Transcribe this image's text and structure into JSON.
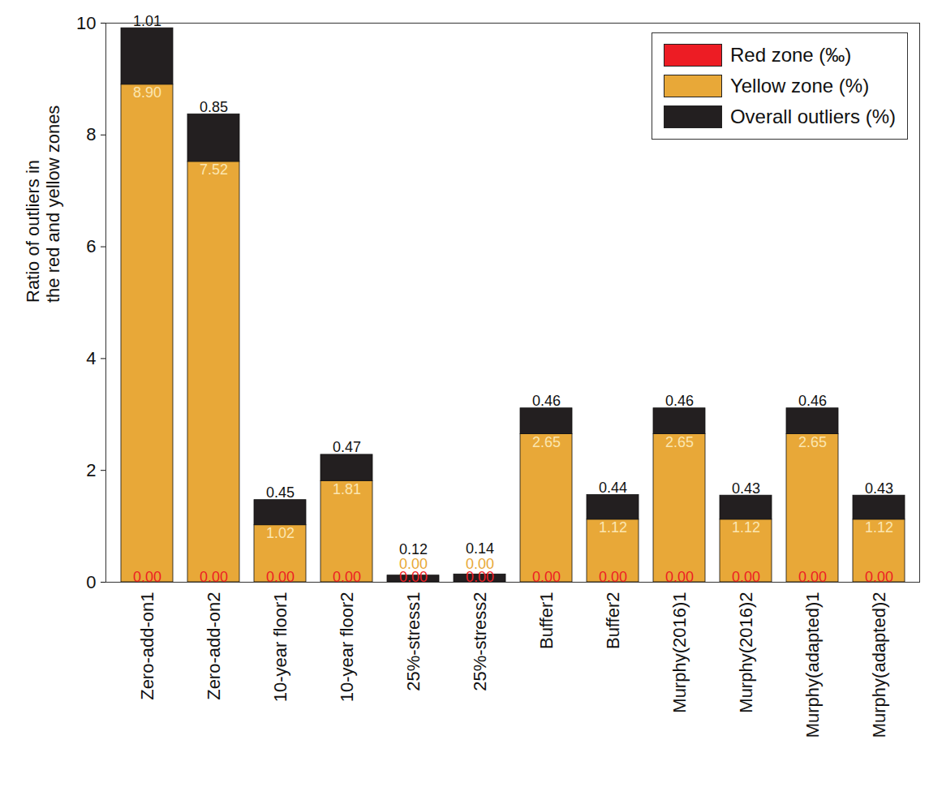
{
  "chart_data": {
    "type": "bar",
    "stacked": true,
    "data_labels": true,
    "grid": false,
    "legend": "top-right",
    "ylabel": "Ratio of outliers in\nthe red and yellow zones",
    "categories": [
      "Zero-add-on1",
      "Zero-add-on2",
      "10-year floor1",
      "10-year floor2",
      "25%-stress1",
      "25%-stress2",
      "Buffer1",
      "Buffer2",
      "Murphy(2016)1",
      "Murphy(2016)2",
      "Murphy(adapted)1",
      "Murphy(adapted)2"
    ],
    "series": [
      {
        "name": "Red zone (‰)",
        "color": "#ed1c24",
        "values": [
          0,
          0,
          0,
          0,
          0,
          0,
          0,
          0,
          0,
          0,
          0,
          0
        ],
        "value_labels": [
          "0.00",
          "0.00",
          "0.00",
          "0.00",
          "0.00",
          "0.00",
          "0.00",
          "0.00",
          "0.00",
          "0.00",
          "0.00",
          "0.00"
        ]
      },
      {
        "name": "Yellow zone (%)",
        "color": "#e8a838",
        "values": [
          8.9,
          7.52,
          1.02,
          1.81,
          0,
          0,
          2.65,
          1.12,
          2.65,
          1.12,
          2.65,
          1.12
        ],
        "value_labels": [
          "8.90",
          "7.52",
          "1.02",
          "1.81",
          "0.00",
          "0.00",
          "2.65",
          "1.12",
          "2.65",
          "1.12",
          "2.65",
          "1.12"
        ]
      },
      {
        "name": "Overall outliers (%)",
        "color": "#231f20",
        "values": [
          1.01,
          0.85,
          0.45,
          0.47,
          0.12,
          0.14,
          0.46,
          0.44,
          0.46,
          0.43,
          0.46,
          0.43
        ],
        "value_labels": [
          "1.01",
          "0.85",
          "0.45",
          "0.47",
          "0.12",
          "0.14",
          "0.46",
          "0.44",
          "0.46",
          "0.43",
          "0.46",
          "0.43"
        ]
      }
    ],
    "ylim": [
      0,
      10
    ],
    "yticks": [
      0,
      2,
      4,
      6,
      8,
      10
    ]
  }
}
